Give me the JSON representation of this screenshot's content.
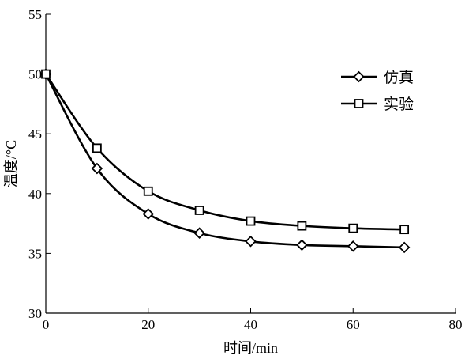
{
  "chart_data": {
    "type": "line",
    "title": "",
    "xlabel": "时间/min",
    "ylabel": "温度/°C",
    "xlim": [
      0,
      80
    ],
    "ylim": [
      30,
      55
    ],
    "xticks": [
      0,
      20,
      40,
      60,
      80
    ],
    "yticks": [
      30,
      35,
      40,
      45,
      50,
      55
    ],
    "grid": false,
    "legend_position": "top-right",
    "x": [
      0,
      10,
      20,
      30,
      40,
      50,
      60,
      70
    ],
    "series": [
      {
        "name": "仿真",
        "marker": "diamond",
        "values": [
          50,
          42.1,
          38.3,
          36.7,
          36.0,
          35.7,
          35.6,
          35.5
        ]
      },
      {
        "name": "实验",
        "marker": "square",
        "values": [
          50,
          43.8,
          40.2,
          38.6,
          37.7,
          37.3,
          37.1,
          37.0
        ]
      }
    ]
  }
}
